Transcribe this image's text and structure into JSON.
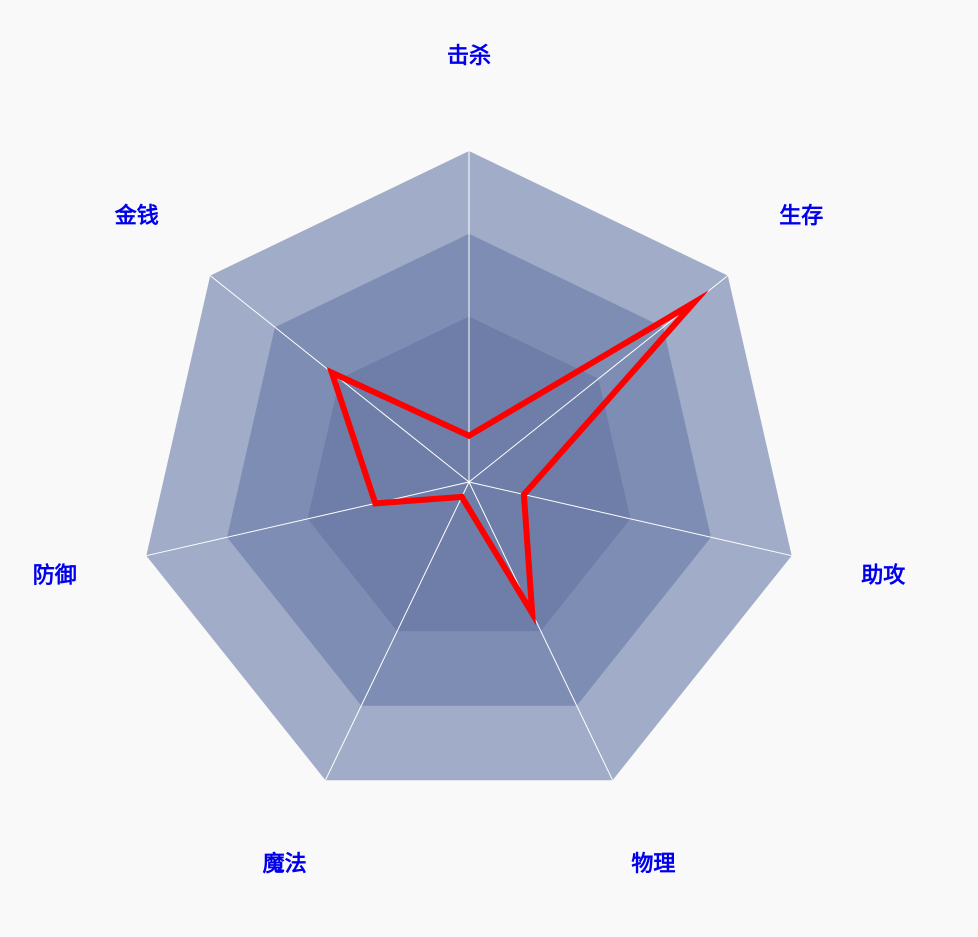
{
  "chart_data": {
    "type": "radar",
    "indicators": [
      "击杀",
      "生存",
      "助攻",
      "物理",
      "魔法",
      "防御",
      "金钱"
    ],
    "max": 100,
    "levels": 4,
    "series": [
      {
        "values": [
          14,
          87,
          17,
          44,
          5,
          29,
          53
        ]
      }
    ],
    "grid_band_colors": [
      "#6e7ea8",
      "#6e7ea8",
      "#7e8db3",
      "#a1acc8"
    ],
    "axis_line_color": "#ffffff",
    "line_color": "#ff0000",
    "label_color": "#0000ee"
  }
}
